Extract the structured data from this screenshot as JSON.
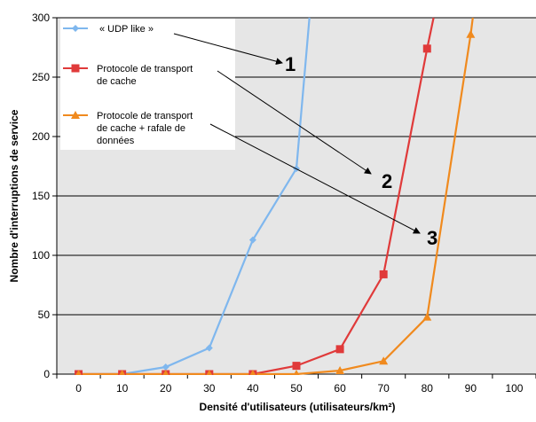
{
  "chart_data": {
    "type": "line",
    "xlabel": "Densité d'utilisateurs (utilisateurs/km²)",
    "ylabel": "Nombre d'interruptions de service",
    "xlim": [
      -5,
      105
    ],
    "ylim": [
      0,
      300
    ],
    "xticks": [
      "0",
      "10",
      "20",
      "30",
      "40",
      "50",
      "60",
      "70",
      "80",
      "90",
      "100"
    ],
    "yticks": [
      "0",
      "50",
      "100",
      "150",
      "200",
      "250",
      "300"
    ],
    "grid": "horizontal",
    "legend_position": "top-left",
    "series": [
      {
        "name": "« UDP like »",
        "color": "#7fb7ee",
        "marker": "diamond",
        "x": [
          0,
          10,
          20,
          30,
          40,
          50,
          53
        ],
        "y": [
          0,
          0,
          6,
          22,
          113,
          173,
          300
        ]
      },
      {
        "name": "Protocole de transport de cache",
        "color": "#e03a3a",
        "marker": "square",
        "x": [
          0,
          10,
          20,
          30,
          40,
          50,
          60,
          70,
          80,
          81.5
        ],
        "y": [
          0,
          0,
          0,
          0,
          0,
          7,
          21,
          84,
          274,
          300
        ]
      },
      {
        "name": "Protocole de transport de cache + rafale de données",
        "color": "#f08a1e",
        "marker": "triangle",
        "x": [
          0,
          10,
          20,
          30,
          40,
          50,
          60,
          70,
          80,
          90,
          90.5
        ],
        "y": [
          0,
          0,
          0,
          0,
          0,
          0,
          3,
          11,
          48,
          286,
          300
        ]
      }
    ],
    "legend_lines": [
      [
        "« UDP like »"
      ],
      [
        "Protocole de transport",
        "de cache"
      ],
      [
        "Protocole de transport",
        "de cache + rafale de",
        "données"
      ]
    ],
    "annotations": [
      {
        "label": "1",
        "series": 0
      },
      {
        "label": "2",
        "series": 1
      },
      {
        "label": "3",
        "series": 2
      }
    ]
  }
}
